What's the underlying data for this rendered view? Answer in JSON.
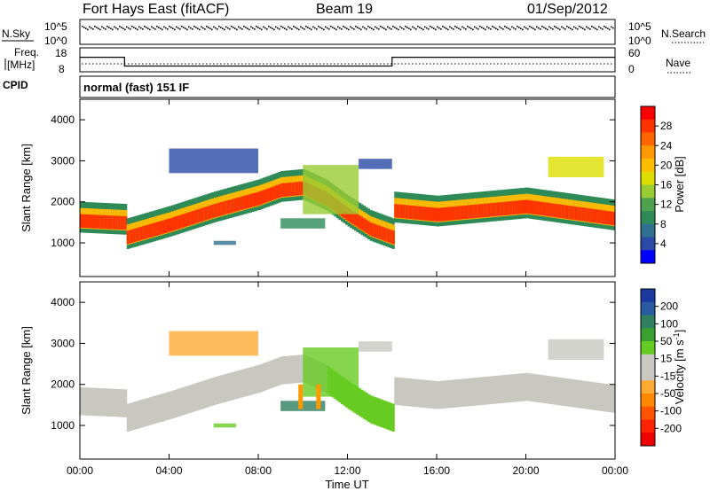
{
  "header": {
    "title": "Fort Hays East (fitACF)",
    "beam": "Beam 19",
    "date": "01/Sep/2012"
  },
  "top_panels": {
    "nsky_label": "N.Sky",
    "nsearch_label": "N.Search",
    "nsky_ticks": [
      "10^5",
      "10^0"
    ],
    "nsearch_ticks": [
      "10^5",
      "10^0"
    ],
    "freq_label_1": "Freq.",
    "freq_label_2": "[MHz]",
    "freq_ticks": [
      "18",
      "8"
    ],
    "nave_label": "Nave",
    "nave_ticks": [
      "60",
      "0"
    ],
    "cpid_label": "CPID",
    "cpid_value": "normal (fast) 151 IF"
  },
  "colorbars": {
    "power": {
      "label": "Power [dB]",
      "ticks": [
        "28",
        "24",
        "20",
        "16",
        "12",
        "8",
        "4"
      ],
      "colors": [
        "#ff0000",
        "#ff3300",
        "#ff6600",
        "#ff9900",
        "#ffbb00",
        "#dddd00",
        "#99cc33",
        "#4fa04f",
        "#2e8b57",
        "#2f6f8f",
        "#2a4aa8",
        "#0000ff"
      ]
    },
    "velocity": {
      "label": "Velocity [m s",
      "label_sup": "-1",
      "label_end": "]",
      "ticks": [
        "200",
        "100",
        "50",
        "15",
        "-15",
        "-50",
        "-100",
        "-200"
      ],
      "colors": [
        "#1a3a9f",
        "#2a5aa0",
        "#2f7f60",
        "#3aa030",
        "#66cc22",
        "#c8c8c0",
        "#c8c8c0",
        "#ffaa33",
        "#ff8800",
        "#ff5500",
        "#ff2200",
        "#ee0000"
      ]
    }
  },
  "axes": {
    "ylabel": "Slant Range [km]",
    "yticks": [
      "1000",
      "2000",
      "3000",
      "4000"
    ],
    "xticks": [
      "00:00",
      "04:00",
      "08:00",
      "12:00",
      "16:00",
      "20:00",
      "00:00"
    ],
    "xlabel": "Time UT"
  },
  "chart_data": {
    "type": "heatmap",
    "x_range_hours": [
      0,
      24
    ],
    "y_range_km": [
      180,
      4500
    ],
    "frequency_mhz": {
      "x": [
        0,
        2,
        2,
        14,
        14,
        24
      ],
      "values": [
        15,
        15,
        10.5,
        10.5,
        15,
        15
      ]
    },
    "main_band": {
      "x": [
        0,
        2,
        2.1,
        4,
        6,
        8,
        9,
        10,
        11,
        12,
        13,
        14,
        14.05,
        16,
        18,
        20,
        22,
        24
      ],
      "center_km": [
        1550,
        1500,
        1150,
        1450,
        1800,
        2100,
        2300,
        2350,
        2100,
        1700,
        1350,
        1150,
        1800,
        1700,
        1800,
        1900,
        1750,
        1600
      ]
    },
    "colors": {
      "power_band": "#ff3300",
      "power_edge": "#2e8b57",
      "velocity_band": "#c8c8c0",
      "velocity_positive": "#66cc22",
      "velocity_negative": "#ff9900"
    }
  }
}
